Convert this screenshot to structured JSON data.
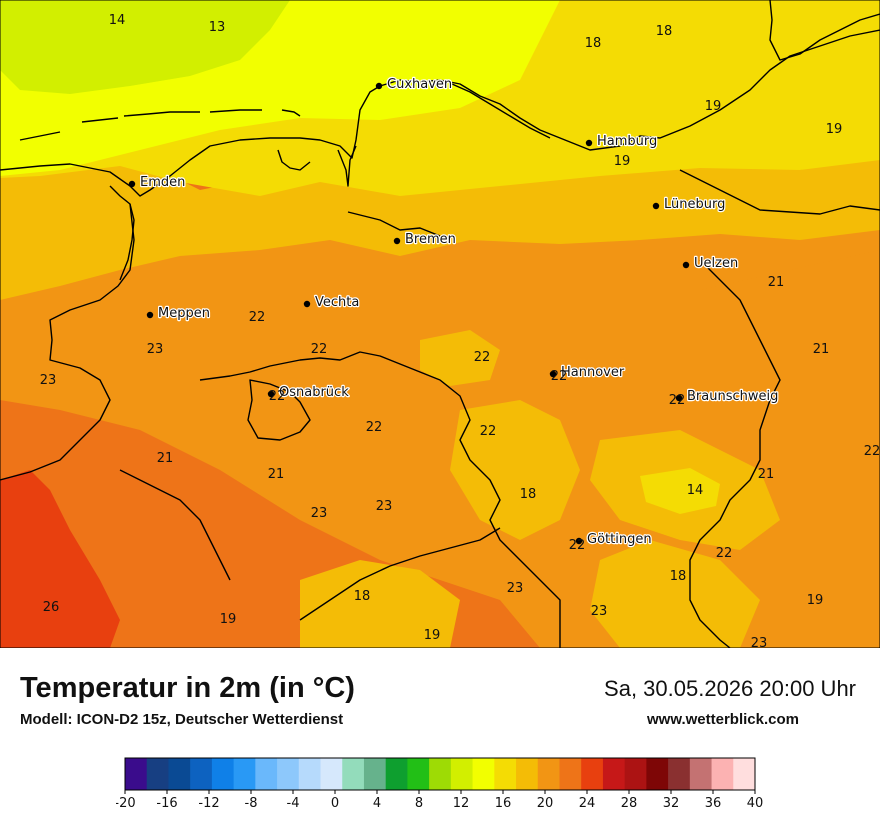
{
  "header": {
    "title": "Temperatur in 2m (in °C)",
    "subtitle": "Modell: ICON-D2 15z, Deutscher Wetterdienst",
    "datetime": "Sa, 30.05.2026 20:00 Uhr",
    "website": "www.wetterblick.com"
  },
  "cities": [
    {
      "name": "Cuxhaven"
    },
    {
      "name": "Hamburg"
    },
    {
      "name": "Emden"
    },
    {
      "name": "Lüneburg"
    },
    {
      "name": "Bremen"
    },
    {
      "name": "Uelzen"
    },
    {
      "name": "Meppen"
    },
    {
      "name": "Vechta"
    },
    {
      "name": "Hannover"
    },
    {
      "name": "Osnabrück"
    },
    {
      "name": "Braunschweig"
    },
    {
      "name": "Göttingen"
    }
  ],
  "temperature_labels": [
    "14",
    "13",
    "18",
    "18",
    "19",
    "19",
    "19",
    "22",
    "23",
    "23",
    "22",
    "22",
    "22",
    "22",
    "22",
    "21",
    "21",
    "22",
    "21",
    "21",
    "22",
    "23",
    "23",
    "18",
    "14",
    "21",
    "22",
    "22",
    "18",
    "26",
    "19",
    "18",
    "23",
    "23",
    "19",
    "19",
    "23"
  ],
  "legend": {
    "unit": "°C",
    "ticks": [
      "-20",
      "-16",
      "-12",
      "-8",
      "-4",
      "0",
      "4",
      "8",
      "12",
      "16",
      "20",
      "24",
      "28",
      "32",
      "36",
      "40"
    ],
    "colors": [
      "#3a0c8c",
      "#173f82",
      "#0a4a94",
      "#0d62c0",
      "#0f80e8",
      "#2999f5",
      "#6ab8fb",
      "#8dc8fb",
      "#b6dafc",
      "#d6e8fc",
      "#93dcbb",
      "#66b28c",
      "#0e9f2f",
      "#22bf16",
      "#9edb05",
      "#d2ef00",
      "#f2ff00",
      "#f4dc04",
      "#f4bc06",
      "#f29514",
      "#ee7418",
      "#e8400f",
      "#c61818",
      "#ac1313",
      "#7e0606",
      "#8a3030",
      "#c47272",
      "#fcb2b2",
      "#ffdede"
    ],
    "min": -20,
    "max": 40,
    "step": 2
  },
  "colors": {
    "cold_light": "#d2ef00",
    "yellow": "#f2ff00",
    "gold": "#f4dc04",
    "amber": "#f4bc06",
    "orange": "#f29514",
    "dark_orange": "#ee7418",
    "red": "#e8400f"
  }
}
